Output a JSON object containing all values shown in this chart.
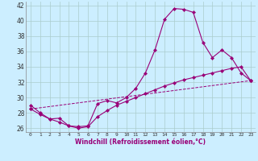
{
  "xlabel": "Windchill (Refroidissement éolien,°C)",
  "bg_color": "#cceeff",
  "line_color": "#990077",
  "grid_color": "#aacccc",
  "xlim": [
    -0.5,
    23.5
  ],
  "ylim": [
    25.5,
    42.5
  ],
  "yticks": [
    26,
    28,
    30,
    32,
    34,
    36,
    38,
    40,
    42
  ],
  "xticks": [
    0,
    1,
    2,
    3,
    4,
    5,
    6,
    7,
    8,
    9,
    10,
    11,
    12,
    13,
    14,
    15,
    16,
    17,
    18,
    19,
    20,
    21,
    22,
    23
  ],
  "series1_x": [
    0,
    1,
    2,
    3,
    4,
    5,
    6,
    7,
    8,
    9,
    10,
    11,
    12,
    13,
    14,
    15,
    16,
    17,
    18,
    19,
    20,
    21,
    22,
    23
  ],
  "series1_y": [
    29.0,
    28.0,
    27.2,
    27.3,
    26.3,
    26.2,
    26.3,
    29.2,
    29.6,
    29.3,
    30.0,
    31.2,
    33.2,
    36.2,
    40.2,
    41.6,
    41.5,
    41.1,
    37.2,
    35.2,
    36.2,
    35.2,
    33.2,
    32.2
  ],
  "series2_x": [
    0,
    1,
    2,
    3,
    4,
    5,
    6,
    7,
    8,
    9,
    10,
    11,
    12,
    13,
    14,
    15,
    16,
    17,
    18,
    19,
    20,
    21,
    22,
    23
  ],
  "series2_y": [
    28.5,
    27.8,
    27.2,
    26.8,
    26.3,
    26.0,
    26.2,
    27.5,
    28.3,
    29.0,
    29.5,
    30.0,
    30.5,
    31.0,
    31.5,
    31.9,
    32.3,
    32.6,
    32.9,
    33.2,
    33.5,
    33.8,
    34.0,
    32.2
  ],
  "series3_x": [
    0,
    23
  ],
  "series3_y": [
    28.5,
    32.2
  ]
}
